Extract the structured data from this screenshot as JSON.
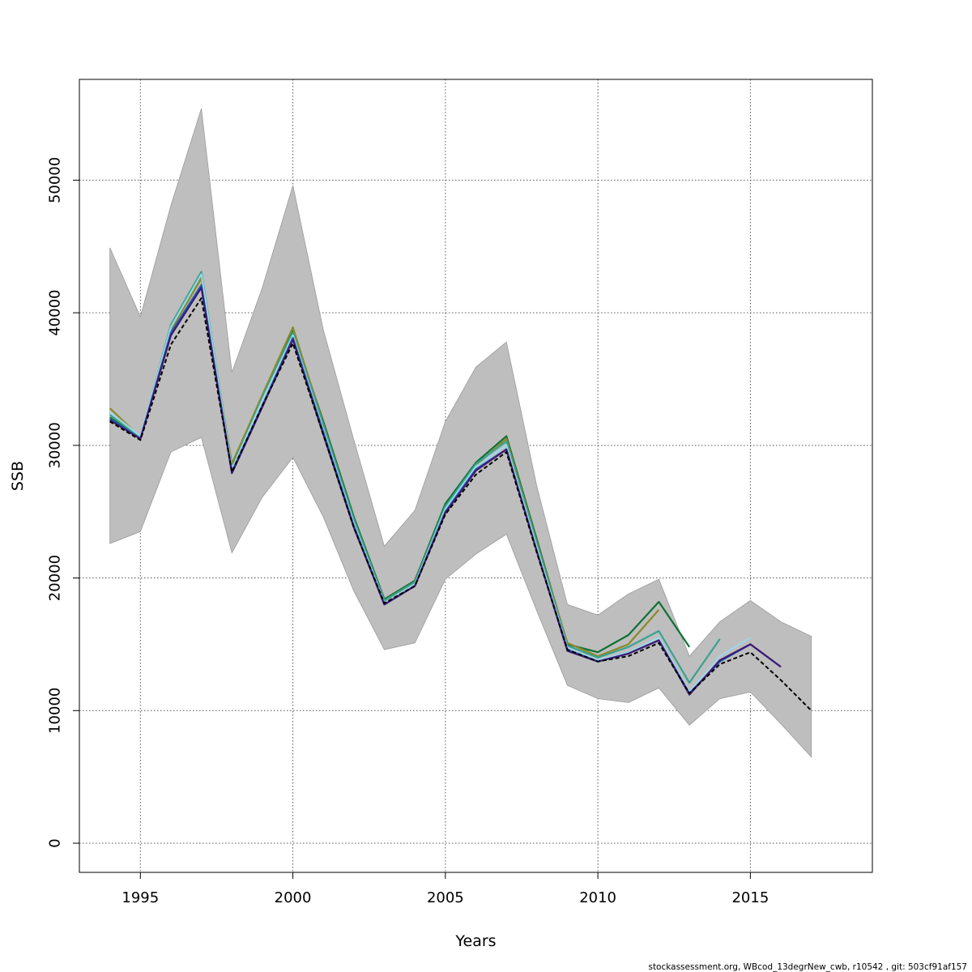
{
  "chart_data": {
    "type": "line",
    "title": "",
    "xlabel": "Years",
    "ylabel": "SSB",
    "xlim": [
      1993,
      2019
    ],
    "ylim": [
      -2200,
      57600
    ],
    "xticks": [
      1995,
      2000,
      2005,
      2010,
      2015
    ],
    "yticks": [
      0,
      10000,
      20000,
      30000,
      40000,
      50000
    ],
    "grid": true,
    "legend": "none",
    "band": {
      "color": "#bebebe",
      "x": [
        1994,
        1995,
        1996,
        1997,
        1998,
        1999,
        2000,
        2001,
        2002,
        2003,
        2004,
        2005,
        2006,
        2007,
        2008,
        2009,
        2010,
        2011,
        2012,
        2013,
        2014,
        2015,
        2016,
        2017
      ],
      "upper": [
        44900,
        39700,
        48100,
        55400,
        35500,
        41900,
        49600,
        38700,
        30400,
        22400,
        25100,
        31800,
        35900,
        37800,
        26900,
        18000,
        17200,
        18800,
        19900,
        14100,
        16700,
        18300,
        16700,
        15600
      ],
      "lower": [
        22600,
        23500,
        29500,
        30600,
        21900,
        26100,
        29100,
        24600,
        19000,
        14600,
        15100,
        19900,
        21800,
        23300,
        17500,
        11900,
        10900,
        10600,
        11700,
        8900,
        10900,
        11400,
        9000,
        6500
      ]
    },
    "series": [
      {
        "color": "#0f7035",
        "x": [
          1994,
          1995,
          1996,
          1997,
          1998,
          1999,
          2000,
          2001,
          2002,
          2003,
          2004,
          2005,
          2006,
          2007,
          2008,
          2009,
          2010,
          2011,
          2012,
          2013
        ],
        "values": [
          32100,
          30600,
          38700,
          42800,
          28400,
          33700,
          38600,
          31800,
          24600,
          18400,
          19800,
          25600,
          28700,
          30700,
          22900,
          15000,
          14400,
          15700,
          18200,
          14800
        ]
      },
      {
        "color": "#8a8a28",
        "x": [
          1994,
          1995,
          1996,
          1997,
          1998,
          1999,
          2000,
          2001,
          2002,
          2003,
          2004,
          2005,
          2006,
          2007,
          2008,
          2009,
          2010,
          2011,
          2012
        ],
        "values": [
          32800,
          30600,
          38700,
          42600,
          28600,
          33800,
          38900,
          31600,
          24400,
          18300,
          19700,
          25300,
          28500,
          30500,
          22700,
          15100,
          14100,
          15000,
          17600
        ]
      },
      {
        "color": "#3aa18f",
        "x": [
          1994,
          1995,
          1996,
          1997,
          1998,
          1999,
          2000,
          2001,
          2002,
          2003,
          2004,
          2005,
          2006,
          2007,
          2008,
          2009,
          2010,
          2011,
          2012,
          2013,
          2014
        ],
        "values": [
          32300,
          30600,
          39100,
          43100,
          28300,
          33600,
          38500,
          31500,
          24400,
          18300,
          19700,
          25400,
          28600,
          30300,
          22600,
          14900,
          14000,
          14800,
          16000,
          12100,
          15400
        ]
      },
      {
        "color": "#9fd6e8",
        "x": [
          1994,
          1995,
          1996,
          1997,
          1998,
          1999,
          2000,
          2001,
          2002,
          2003,
          2004,
          2005,
          2006,
          2007,
          2008,
          2009,
          2010,
          2011,
          2012,
          2013,
          2014,
          2015
        ],
        "values": [
          32500,
          30700,
          38900,
          42900,
          28200,
          33400,
          38300,
          31200,
          24100,
          18100,
          19500,
          25200,
          28400,
          30000,
          22300,
          14700,
          13800,
          14400,
          15500,
          11400,
          14100,
          15500
        ]
      },
      {
        "color": "#1f5fb0",
        "x": [
          1994,
          1995,
          1996,
          1997,
          1998,
          1999,
          2000,
          2001,
          2002,
          2003,
          2004,
          2005,
          2006,
          2007,
          2008,
          2009,
          2010,
          2011,
          2012,
          2013,
          2014,
          2015,
          2016
        ],
        "values": [
          32000,
          30500,
          38500,
          42100,
          28000,
          33000,
          38100,
          31000,
          23900,
          18000,
          19400,
          25000,
          28200,
          29700,
          22000,
          14600,
          13700,
          14300,
          15300,
          11300,
          13700,
          15000,
          13300
        ]
      },
      {
        "color": "#3d1a72",
        "x": [
          1994,
          1995,
          1996,
          1997,
          1998,
          1999,
          2000,
          2001,
          2002,
          2003,
          2004,
          2005,
          2006,
          2007,
          2008,
          2009,
          2010,
          2011,
          2012,
          2013,
          2014,
          2015,
          2016
        ],
        "values": [
          31900,
          30500,
          38300,
          41900,
          27900,
          32900,
          38000,
          30800,
          23800,
          18000,
          19400,
          24900,
          28100,
          29700,
          22000,
          14500,
          13700,
          14300,
          15300,
          11200,
          13800,
          15000,
          13300
        ]
      },
      {
        "color": "#000000",
        "dashed": true,
        "x": [
          1994,
          1995,
          1996,
          1997,
          1998,
          1999,
          2000,
          2001,
          2002,
          2003,
          2004,
          2005,
          2006,
          2007,
          2008,
          2009,
          2010,
          2011,
          2012,
          2013,
          2014,
          2015,
          2016,
          2017
        ],
        "values": [
          31800,
          30400,
          37600,
          41100,
          28000,
          33000,
          37700,
          30800,
          23800,
          18100,
          19400,
          24800,
          27800,
          29500,
          21900,
          14600,
          13700,
          14100,
          15100,
          11300,
          13500,
          14400,
          12300,
          10000
        ]
      }
    ]
  },
  "footer": "stockassessment.org, WBcod_13degrNew_cwb, r10542 , git: 503cf91af157"
}
